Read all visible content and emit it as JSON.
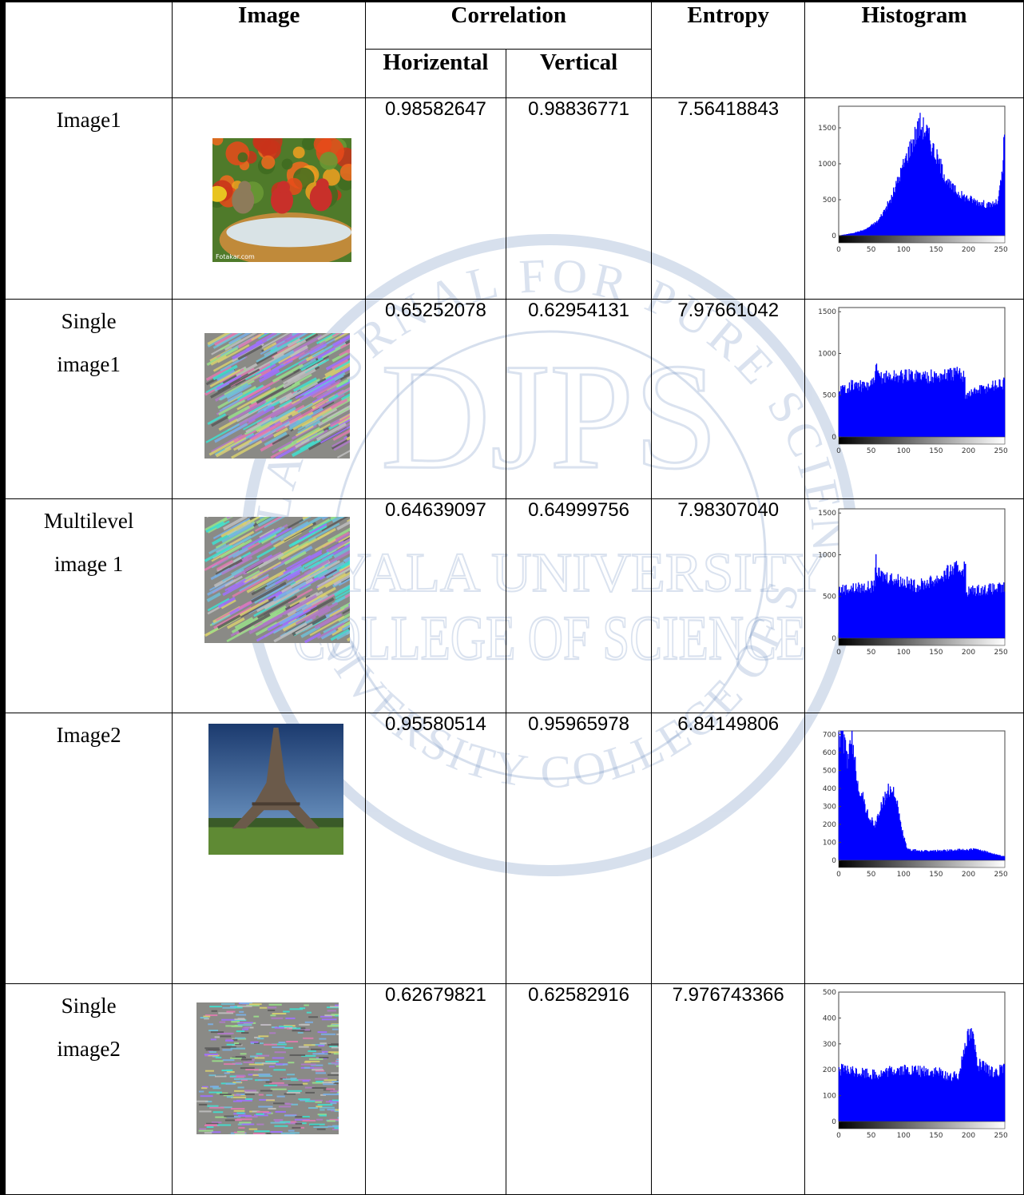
{
  "table": {
    "headers": {
      "blank": "",
      "image": "Image",
      "correlation": "Correlation",
      "horizontal": "Horizental",
      "vertical": "Vertical",
      "entropy": "Entropy",
      "histogram": "Histogram"
    },
    "rows": [
      {
        "label_line1": "Image1",
        "label_line2": "",
        "horizontal": "0.98582647",
        "vertical": "0.98836771",
        "entropy": "7.56418843",
        "thumbnail": "bird-photo",
        "thumb_caption": "Fotakar.com",
        "histogram": {
          "y_ticks": [
            "0",
            "500",
            "1000",
            "1500"
          ],
          "x_ticks": [
            "0",
            "50",
            "100",
            "150",
            "200",
            "250"
          ],
          "ymax": 1800,
          "profile": [
            [
              0,
              0
            ],
            [
              20,
              30
            ],
            [
              40,
              80
            ],
            [
              60,
              200
            ],
            [
              80,
              500
            ],
            [
              100,
              1000
            ],
            [
              115,
              1350
            ],
            [
              125,
              1550
            ],
            [
              135,
              1450
            ],
            [
              150,
              1100
            ],
            [
              170,
              700
            ],
            [
              190,
              550
            ],
            [
              210,
              480
            ],
            [
              230,
              420
            ],
            [
              245,
              460
            ],
            [
              252,
              900
            ],
            [
              255,
              1400
            ]
          ]
        },
        "bar_color": "#0000ff"
      },
      {
        "label_line1": "Single",
        "label_line2": "image1",
        "horizontal": "0.65252078",
        "vertical": "0.62954131",
        "entropy": "7.97661042",
        "thumbnail": "scrambled-noise",
        "thumb_caption": "",
        "histogram": {
          "y_ticks": [
            "0",
            "500",
            "1000",
            "1500"
          ],
          "x_ticks": [
            "0",
            "50",
            "100",
            "150",
            "200",
            "250"
          ],
          "ymax": 1550,
          "profile": [
            [
              0,
              550
            ],
            [
              20,
              620
            ],
            [
              40,
              600
            ],
            [
              55,
              650
            ],
            [
              56,
              850
            ],
            [
              60,
              720
            ],
            [
              80,
              720
            ],
            [
              120,
              740
            ],
            [
              150,
              720
            ],
            [
              180,
              760
            ],
            [
              194,
              740
            ],
            [
              195,
              500
            ],
            [
              215,
              560
            ],
            [
              240,
              620
            ],
            [
              255,
              640
            ]
          ]
        },
        "bar_color": "#0000ff"
      },
      {
        "label_line1": "Multilevel",
        "label_line2": "image 1",
        "horizontal": "0.64639097",
        "vertical": "0.64999756",
        "entropy": "7.98307040",
        "thumbnail": "scrambled-noise",
        "thumb_caption": "",
        "histogram": {
          "y_ticks": [
            "0",
            "500",
            "1000",
            "1500"
          ],
          "x_ticks": [
            "0",
            "50",
            "100",
            "150",
            "200",
            "250"
          ],
          "ymax": 1550,
          "profile": [
            [
              0,
              580
            ],
            [
              30,
              600
            ],
            [
              55,
              620
            ],
            [
              56,
              950
            ],
            [
              60,
              760
            ],
            [
              90,
              700
            ],
            [
              120,
              620
            ],
            [
              150,
              700
            ],
            [
              175,
              820
            ],
            [
              195,
              840
            ],
            [
              196,
              560
            ],
            [
              220,
              580
            ],
            [
              255,
              600
            ]
          ]
        },
        "bar_color": "#0000ff"
      },
      {
        "label_line1": "Image2",
        "label_line2": "",
        "horizontal": "0.95580514",
        "vertical": "0.95965978",
        "entropy": "6.84149806",
        "thumbnail": "eiffel-tower-photo",
        "thumb_caption": "",
        "histogram": {
          "y_ticks": [
            "0",
            "100",
            "200",
            "300",
            "400",
            "500",
            "600",
            "700"
          ],
          "x_ticks": [
            "0",
            "50",
            "100",
            "150",
            "200",
            "250"
          ],
          "ymax": 720,
          "profile": [
            [
              0,
              700
            ],
            [
              5,
              720
            ],
            [
              12,
              560
            ],
            [
              20,
              650
            ],
            [
              30,
              420
            ],
            [
              45,
              250
            ],
            [
              55,
              190
            ],
            [
              65,
              300
            ],
            [
              75,
              380
            ],
            [
              85,
              400
            ],
            [
              95,
              200
            ],
            [
              105,
              60
            ],
            [
              130,
              50
            ],
            [
              170,
              55
            ],
            [
              210,
              60
            ],
            [
              240,
              35
            ],
            [
              255,
              20
            ]
          ]
        },
        "bar_color": "#0000ff"
      },
      {
        "label_line1": "Single",
        "label_line2": "image2",
        "horizontal": "0.62679821",
        "vertical": "0.62582916",
        "entropy": "7.976743366",
        "thumbnail": "scrambled-noise-fine",
        "thumb_caption": "",
        "histogram": {
          "y_ticks": [
            "0",
            "100",
            "200",
            "300",
            "400",
            "500"
          ],
          "x_ticks": [
            "0",
            "50",
            "100",
            "150",
            "200",
            "250"
          ],
          "ymax": 500,
          "profile": [
            [
              0,
              200
            ],
            [
              30,
              190
            ],
            [
              60,
              180
            ],
            [
              90,
              200
            ],
            [
              120,
              195
            ],
            [
              150,
              190
            ],
            [
              175,
              170
            ],
            [
              185,
              180
            ],
            [
              195,
              320
            ],
            [
              205,
              340
            ],
            [
              215,
              220
            ],
            [
              235,
              190
            ],
            [
              255,
              200
            ]
          ]
        },
        "bar_color": "#0000ff"
      }
    ]
  },
  "watermark": {
    "main": "DJPS",
    "line1": "DIYALA UNIVERSITY",
    "line2": "COLLEGE OF SCIENCE",
    "ring_top": "DIYALA JOURNAL FOR PURE SCIENCES",
    "ring_bottom": "DIYALA UNIVERSITY COLLEGE OF SCIENCE",
    "color": "#7f9fc8"
  }
}
